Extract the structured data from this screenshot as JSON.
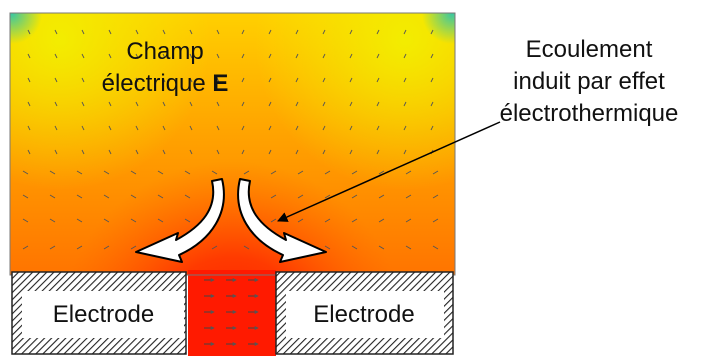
{
  "labels": {
    "field_line1": "Champ",
    "field_line2_prefix": "électrique ",
    "field_symbol": "E",
    "flow_line1": "Ecoulement",
    "flow_line2": "induit par effet",
    "flow_line3": "électrothermique",
    "electrode_left": "Electrode",
    "electrode_right": "Electrode"
  },
  "colors": {
    "hot": "#ff1a00",
    "warm": "#ff7a00",
    "mild": "#ffb000",
    "cool": "#f0e400",
    "corner": "#3cc8a0",
    "vectors": "#555555",
    "electrode_fill": "#ffffff",
    "electrode_hatch": "#222222",
    "flow_arrow_fill": "#ffffff",
    "flow_arrow_stroke": "#000000"
  },
  "icons": [
    "curved-flow-arrow-icon",
    "pointer-arrow-icon"
  ]
}
